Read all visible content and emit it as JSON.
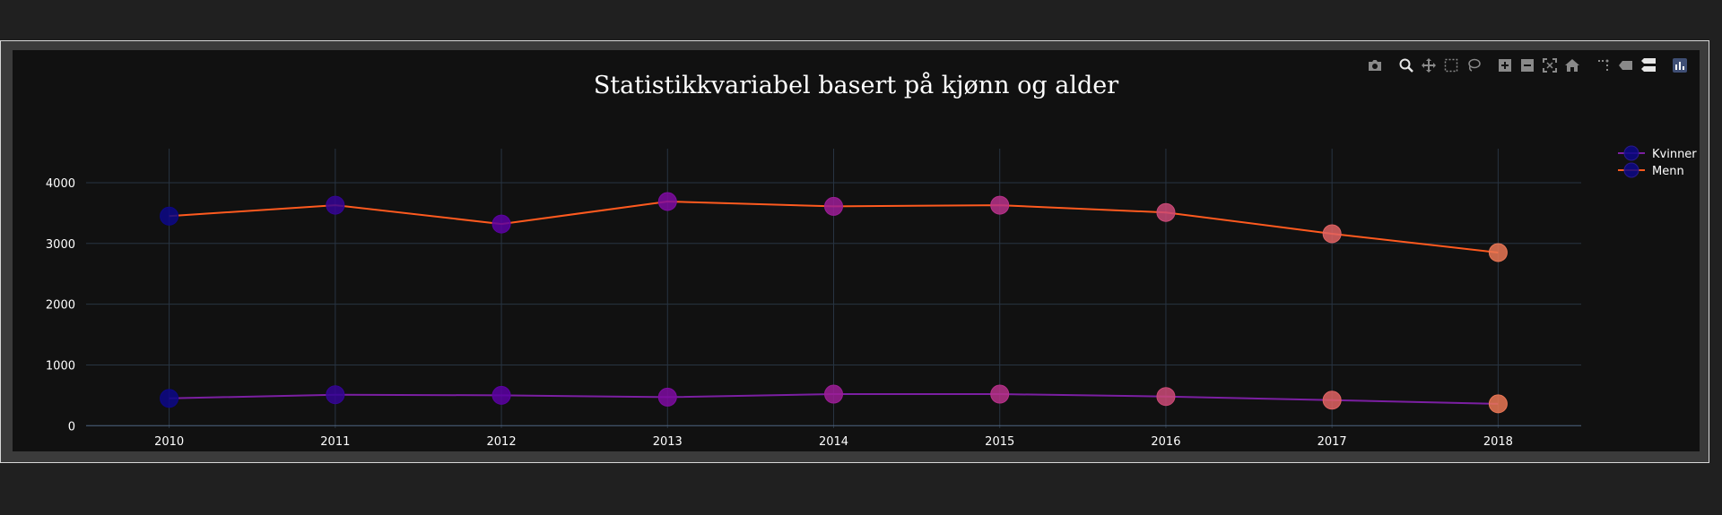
{
  "chart_data": {
    "type": "line",
    "title": "Statistikkvariabel basert på kjønn og alder",
    "xlabel": "",
    "ylabel": "",
    "x": [
      2010,
      2011,
      2012,
      2013,
      2014,
      2015,
      2016,
      2017,
      2018
    ],
    "xlim": [
      2009.5,
      2018.5
    ],
    "ylim": [
      -40,
      4560
    ],
    "yticks": [
      0,
      1000,
      2000,
      3000,
      4000
    ],
    "grid": true,
    "legend": "top-right",
    "series": [
      {
        "name": "Kvinner",
        "color": "#7b1fa2",
        "values": [
          450,
          510,
          500,
          470,
          520,
          520,
          480,
          420,
          360
        ]
      },
      {
        "name": "Menn",
        "color": "#ff5a1f",
        "values": [
          3450,
          3630,
          3320,
          3690,
          3610,
          3630,
          3510,
          3160,
          2850
        ]
      }
    ],
    "marker_colorscale": [
      "#0d0887",
      "#6a00a8",
      "#b12a90",
      "#e16462",
      "#f89441"
    ]
  },
  "modebar": {
    "icons": [
      "camera-icon",
      "zoom-icon",
      "pan-icon",
      "box-select-icon",
      "lasso-icon",
      "zoom-in-icon",
      "zoom-out-icon",
      "autoscale-icon",
      "reset-axes-icon",
      "spike-lines-icon",
      "hover-closest-icon",
      "hover-compare-icon",
      "plotly-logo-icon"
    ]
  }
}
